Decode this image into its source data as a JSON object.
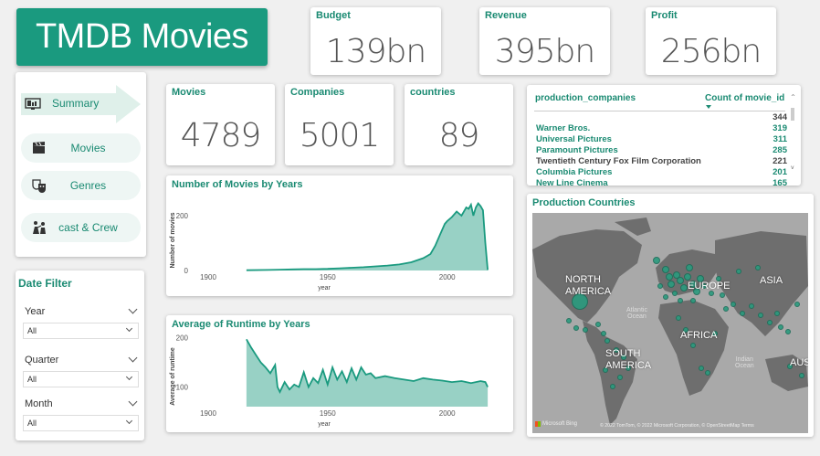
{
  "header": {
    "title": "TMDB Movies"
  },
  "kpis": {
    "budget": {
      "label": "Budget",
      "value": "139bn"
    },
    "revenue": {
      "label": "Revenue",
      "value": "395bn"
    },
    "profit": {
      "label": "Profit",
      "value": "256bn"
    },
    "movies": {
      "label": "Movies",
      "value": "4789"
    },
    "companies": {
      "label": "Companies",
      "value": "5001"
    },
    "countries": {
      "label": "countries",
      "value": "89"
    }
  },
  "nav": {
    "items": [
      {
        "label": "Summary",
        "icon": "summary-icon",
        "active": true
      },
      {
        "label": "Movies",
        "icon": "clapperboard-icon",
        "active": false
      },
      {
        "label": "Genres",
        "icon": "theater-masks-icon",
        "active": false
      },
      {
        "label": "cast & Crew",
        "icon": "cast-crew-icon",
        "active": false
      }
    ]
  },
  "filters": {
    "title": "Date Filter",
    "year": {
      "label": "Year",
      "value": "All"
    },
    "quarter": {
      "label": "Quarter",
      "value": "All"
    },
    "month": {
      "label": "Month",
      "value": "All"
    }
  },
  "table": {
    "col1": "production_companies",
    "col2": "Count of movie_id",
    "rows": [
      {
        "name": "",
        "value": "344"
      },
      {
        "name": "Warner Bros.",
        "value": "319"
      },
      {
        "name": "Universal Pictures",
        "value": "311"
      },
      {
        "name": "Paramount Pictures",
        "value": "285"
      },
      {
        "name": "Twentieth Century Fox Film Corporation",
        "value": "221"
      },
      {
        "name": "Columbia Pictures",
        "value": "201"
      },
      {
        "name": "New Line Cinema",
        "value": "165"
      }
    ]
  },
  "map": {
    "title": "Production Countries",
    "labels": {
      "north_america": "NORTH\nAMERICA",
      "europe": "EUROPE",
      "asia": "ASIA",
      "africa": "AFRICA",
      "south_america": "SOUTH\nAMERICA",
      "australia": "AUST",
      "atlantic": "Atlantic\nOcean",
      "indian": "Indian\nOcean"
    },
    "footer_brand": "Microsoft Bing",
    "footer_credit": "© 2022 TomTom, © 2022 Microsoft Corporation, © OpenStreetMap  Terms"
  },
  "chart_data": [
    {
      "type": "area",
      "title": "Number of Movies by Years",
      "xlabel": "year",
      "ylabel": "Number of movies",
      "xlim": [
        1900,
        2020
      ],
      "ylim": [
        0,
        260
      ],
      "xticks": [
        1900,
        1950,
        2000
      ],
      "yticks": [
        0,
        200
      ],
      "x": [
        1916,
        1925,
        1930,
        1935,
        1940,
        1945,
        1950,
        1955,
        1960,
        1965,
        1970,
        1975,
        1980,
        1985,
        1990,
        1993,
        1995,
        1997,
        1999,
        2000,
        2002,
        2004,
        2006,
        2008,
        2009,
        2010,
        2011,
        2012,
        2013,
        2014,
        2015,
        2016,
        2017
      ],
      "y": [
        1,
        2,
        3,
        4,
        5,
        5,
        6,
        8,
        10,
        12,
        15,
        18,
        22,
        30,
        45,
        60,
        90,
        130,
        170,
        180,
        195,
        215,
        200,
        230,
        225,
        240,
        200,
        230,
        245,
        235,
        220,
        100,
        2
      ],
      "color": "#1a9a7f"
    },
    {
      "type": "area",
      "title": "Average of Runtime by Years",
      "xlabel": "year",
      "ylabel": "Average of runtime",
      "xlim": [
        1900,
        2020
      ],
      "ylim": [
        60,
        205
      ],
      "xticks": [
        1900,
        1950,
        2000
      ],
      "yticks": [
        100,
        200
      ],
      "x": [
        1916,
        1918,
        1920,
        1922,
        1924,
        1926,
        1928,
        1929,
        1930,
        1932,
        1934,
        1936,
        1938,
        1940,
        1942,
        1944,
        1946,
        1948,
        1950,
        1952,
        1954,
        1956,
        1958,
        1960,
        1962,
        1964,
        1966,
        1968,
        1970,
        1974,
        1978,
        1982,
        1986,
        1990,
        1994,
        1998,
        2002,
        2006,
        2010,
        2014,
        2016,
        2017
      ],
      "y": [
        197,
        180,
        165,
        150,
        140,
        128,
        145,
        100,
        90,
        110,
        95,
        105,
        100,
        130,
        100,
        118,
        108,
        135,
        105,
        140,
        115,
        132,
        110,
        138,
        115,
        140,
        125,
        128,
        118,
        122,
        118,
        115,
        112,
        118,
        115,
        113,
        110,
        112,
        108,
        112,
        110,
        100
      ],
      "color": "#1a9a7f"
    }
  ]
}
